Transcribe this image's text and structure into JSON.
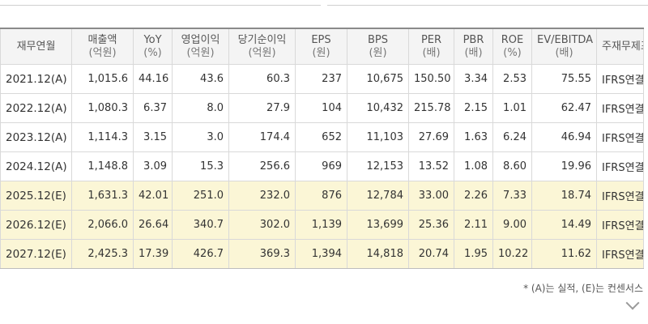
{
  "headers": [
    {
      "title": "재무연월",
      "sub": ""
    },
    {
      "title": "매출액",
      "sub": "(억원)"
    },
    {
      "title": "YoY",
      "sub": "(%)"
    },
    {
      "title": "영업이익",
      "sub": "(억원)"
    },
    {
      "title": "당기순이익",
      "sub": "(억원)"
    },
    {
      "title": "EPS",
      "sub": "(원)"
    },
    {
      "title": "BPS",
      "sub": "(원)"
    },
    {
      "title": "PER",
      "sub": "(배)"
    },
    {
      "title": "PBR",
      "sub": "(배)"
    },
    {
      "title": "ROE",
      "sub": "(%)"
    },
    {
      "title": "EV/EBITDA",
      "sub": "(배)"
    },
    {
      "title": "주재무제표",
      "sub": ""
    }
  ],
  "rows": [
    {
      "estimate": false,
      "cells": [
        "2021.12(A)",
        "1,015.6",
        "44.16",
        "43.6",
        "60.3",
        "237",
        "10,675",
        "150.50",
        "3.34",
        "2.53",
        "75.55",
        "IFRS연결"
      ]
    },
    {
      "estimate": false,
      "cells": [
        "2022.12(A)",
        "1,080.3",
        "6.37",
        "8.0",
        "27.9",
        "104",
        "10,432",
        "215.78",
        "2.15",
        "1.01",
        "62.47",
        "IFRS연결"
      ]
    },
    {
      "estimate": false,
      "cells": [
        "2023.12(A)",
        "1,114.3",
        "3.15",
        "3.0",
        "174.4",
        "652",
        "11,103",
        "27.69",
        "1.63",
        "6.24",
        "46.94",
        "IFRS연결"
      ]
    },
    {
      "estimate": false,
      "cells": [
        "2024.12(A)",
        "1,148.8",
        "3.09",
        "15.3",
        "256.6",
        "969",
        "12,153",
        "13.52",
        "1.08",
        "8.60",
        "19.96",
        "IFRS연결"
      ]
    },
    {
      "estimate": true,
      "cells": [
        "2025.12(E)",
        "1,631.3",
        "42.01",
        "251.0",
        "232.0",
        "876",
        "12,784",
        "33.00",
        "2.26",
        "7.33",
        "18.74",
        "IFRS연결"
      ]
    },
    {
      "estimate": true,
      "cells": [
        "2026.12(E)",
        "2,066.0",
        "26.64",
        "340.7",
        "302.0",
        "1,139",
        "13,699",
        "25.36",
        "2.11",
        "9.00",
        "14.49",
        "IFRS연결"
      ]
    },
    {
      "estimate": true,
      "cells": [
        "2027.12(E)",
        "2,425.3",
        "17.39",
        "426.7",
        "369.3",
        "1,394",
        "14,818",
        "20.74",
        "1.95",
        "10.22",
        "11.62",
        "IFRS연결"
      ]
    }
  ],
  "footnote": "* (A)는 실적, (E)는 컨센서스",
  "colors": {
    "estimate_row_bg": "#fbf6d6",
    "header_bg": "#f4f4f4",
    "grid": "#d9d9d9"
  }
}
